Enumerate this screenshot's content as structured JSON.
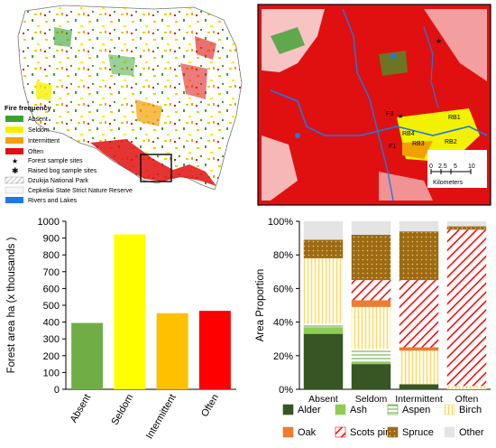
{
  "map_left": {
    "legend_title": "Fire frequency",
    "classes": [
      {
        "label": "Absent",
        "color": "#3aa12e"
      },
      {
        "label": "Seldom",
        "color": "#f2f200"
      },
      {
        "label": "Intermittent",
        "color": "#f2a000"
      },
      {
        "label": "Often",
        "color": "#e01010"
      }
    ],
    "symbols": [
      {
        "label": "Forest sample sites"
      },
      {
        "label": "Raised bog sample sites"
      },
      {
        "label": "Dzukija National Park"
      },
      {
        "label": "Cepkeliai State Strict Nature Reserve"
      },
      {
        "label": "Rivers and Lakes",
        "color": "#1e78e6"
      }
    ]
  },
  "map_right": {
    "site_labels": [
      "F3",
      "F1",
      "RB4",
      "RB1",
      "RB3",
      "RB2"
    ],
    "scale_ticks": [
      "0",
      "2.5",
      "5",
      "10"
    ],
    "scale_unit": "Kilometers"
  },
  "chart_data": [
    {
      "type": "bar",
      "categories": [
        "Absent",
        "Seldom",
        "Intermittent",
        "Often"
      ],
      "values": [
        395,
        922,
        453,
        467
      ],
      "colors": [
        "#70ad47",
        "#ffff00",
        "#ffc000",
        "#ff0000"
      ],
      "ylabel": "Forest area ha (x thousands )",
      "ylim": [
        0,
        1000
      ],
      "yticks": [
        0,
        100,
        200,
        300,
        400,
        500,
        600,
        700,
        800,
        900,
        1000
      ],
      "grid": false
    },
    {
      "type": "bar",
      "stacked": true,
      "categories": [
        "Absent",
        "Seldom",
        "Intermittent",
        "Often"
      ],
      "ylabel": "Area Proportion",
      "ylim": [
        0,
        100
      ],
      "ytick_labels": [
        "0%",
        "20%",
        "40%",
        "60%",
        "80%",
        "100%"
      ],
      "legend_position": "bottom",
      "series": [
        {
          "name": "Alder",
          "values": [
            33,
            15,
            3,
            0
          ],
          "color": "#375623",
          "pattern": "solid"
        },
        {
          "name": "Ash",
          "values": [
            4,
            1,
            0,
            0
          ],
          "color": "#8fcc56",
          "pattern": "solid"
        },
        {
          "name": "Aspen",
          "values": [
            2,
            8,
            0,
            0
          ],
          "color": "#5aa832",
          "pattern": "hlines"
        },
        {
          "name": "Birch",
          "values": [
            39,
            25,
            20,
            2
          ],
          "color": "#ffd966",
          "pattern": "vlines"
        },
        {
          "name": "Oak",
          "values": [
            0,
            4,
            2,
            0
          ],
          "color": "#ed7d31",
          "pattern": "solid"
        },
        {
          "name": "Scots pine",
          "values": [
            0,
            12,
            40,
            93
          ],
          "color": "#ff0000",
          "pattern": "diag"
        },
        {
          "name": "Spruce",
          "values": [
            11,
            27,
            29,
            2
          ],
          "color": "#9c6b12",
          "pattern": "dots"
        },
        {
          "name": "Other",
          "values": [
            11,
            8,
            6,
            3
          ],
          "color": "#e4e4e4",
          "pattern": "solid"
        }
      ]
    }
  ]
}
